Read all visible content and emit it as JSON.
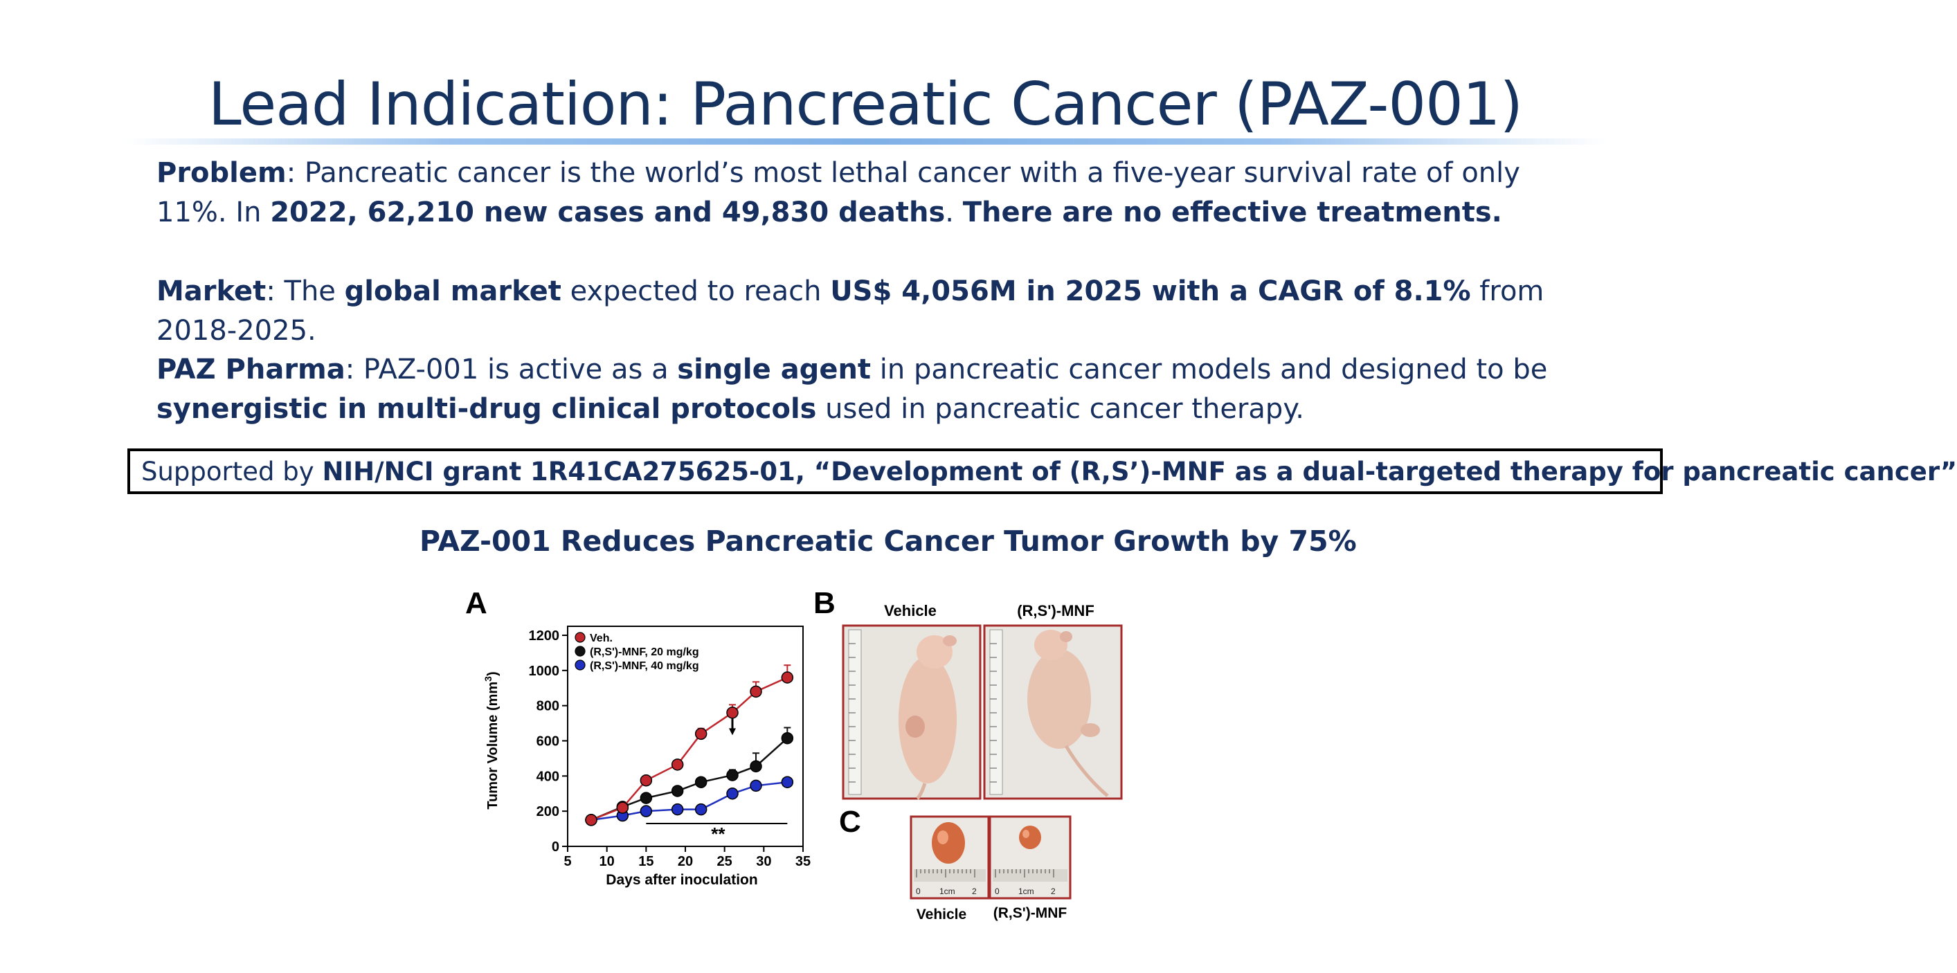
{
  "slide": {
    "title": "Lead Indication: Pancreatic Cancer (PAZ-001)",
    "problem": {
      "label": "Problem",
      "text1": ": Pancreatic cancer is the world’s most lethal cancer with a five-year survival rate of only 11%.  In ",
      "bold2": "2022, 62,210 new cases and 49,830 deaths",
      "text2": ". ",
      "bold3": "There are no effective treatments."
    },
    "market": {
      "label": "Market",
      "text1": ": The ",
      "bold1": "global market",
      "text2": " expected to reach ",
      "bold2": "US$ 4,056M in 2025 with a CAGR of 8.1%",
      "text3": " from 2018-2025."
    },
    "pharma": {
      "label": "PAZ Pharma",
      "text1": ": PAZ-001 is active as a ",
      "bold1": "single agent",
      "text2": " in pancreatic cancer models and designed to be ",
      "bold2": "synergistic in multi-drug clinical protocols",
      "text3": " used in pancreatic cancer therapy."
    },
    "grant": {
      "prefix": "Supported by ",
      "bold": "NIH/NCI grant 1R41CA275625-01, “Development of (R,S’)-MNF as a dual-targeted therapy for pancreatic cancer”"
    },
    "subheading": "PAZ-001 Reduces Pancreatic Cancer Tumor Growth by 75%"
  },
  "figure": {
    "panel_a_label": "A",
    "panel_b_label": "B",
    "panel_c_label": "C",
    "panel_b_captions": [
      "Vehicle",
      "(R,S')-MNF"
    ],
    "panel_c_captions": [
      "Vehicle",
      "(R,S')-MNF"
    ],
    "ruler_labels": [
      "0",
      "1cm",
      "2"
    ],
    "significance": "**"
  },
  "chart_data": {
    "type": "line",
    "xlabel": "Days after inoculation",
    "ylabel": "Tumor Volume (mm",
    "ylabel_sup": "3",
    "ylabel_close": ")",
    "xlim": [
      5,
      35
    ],
    "ylim": [
      0,
      1200
    ],
    "x_ticks": [
      5,
      10,
      15,
      20,
      25,
      30,
      35
    ],
    "y_ticks": [
      0,
      200,
      400,
      600,
      800,
      1000,
      1200
    ],
    "grid": false,
    "legend_position": "top-left",
    "series": [
      {
        "name": "Veh.",
        "color": "#c0272d",
        "x": [
          8,
          12,
          15,
          19,
          22,
          26,
          29,
          33
        ],
        "y": [
          150,
          220,
          375,
          465,
          640,
          760,
          880,
          960
        ],
        "err": [
          0,
          20,
          20,
          20,
          30,
          45,
          55,
          70
        ]
      },
      {
        "name": "(R,S')-MNF, 20 mg/kg",
        "color": "#111111",
        "x": [
          8,
          12,
          15,
          19,
          22,
          26,
          29,
          33
        ],
        "y": [
          150,
          225,
          275,
          315,
          365,
          405,
          455,
          615
        ],
        "err": [
          0,
          20,
          15,
          25,
          25,
          30,
          75,
          60
        ]
      },
      {
        "name": "(R,S')-MNF, 40 mg/kg",
        "color": "#1f2fbf",
        "x": [
          8,
          12,
          15,
          19,
          22,
          26,
          29,
          33
        ],
        "y": [
          150,
          175,
          200,
          210,
          210,
          300,
          345,
          365
        ],
        "err": [
          0,
          10,
          10,
          10,
          10,
          20,
          20,
          15
        ]
      }
    ],
    "annotations": [
      {
        "type": "arrow",
        "x": 26,
        "y": 640
      },
      {
        "type": "bracket",
        "x_from": 15,
        "x_to": 33,
        "y": 130,
        "label": "**"
      }
    ]
  }
}
